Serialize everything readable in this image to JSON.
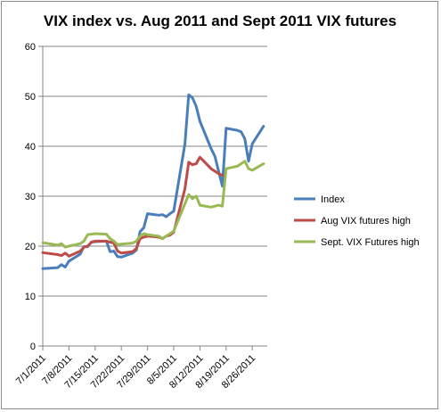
{
  "chart_data": {
    "type": "line",
    "title": "VIX index vs. Aug 2011 and Sept 2011 VIX futures",
    "xlabel": "",
    "ylabel": "",
    "ylim": [
      0,
      60
    ],
    "yticks": [
      0,
      10,
      20,
      30,
      40,
      50,
      60
    ],
    "xlim": [
      "2011-07-01",
      "2011-08-30"
    ],
    "xticks": [
      "7/1/2011",
      "7/8/2011",
      "7/15/2011",
      "7/22/2011",
      "7/29/2011",
      "8/5/2011",
      "8/12/2011",
      "8/19/2011",
      "8/26/2011"
    ],
    "grid": {
      "horizontal": true,
      "vertical": false
    },
    "legend_position": "right",
    "series": [
      {
        "name": "Index",
        "color": "#4a7ebb",
        "points": [
          [
            "2011-07-01",
            15.5
          ],
          [
            "2011-07-05",
            15.7
          ],
          [
            "2011-07-06",
            16.3
          ],
          [
            "2011-07-07",
            15.8
          ],
          [
            "2011-07-08",
            17.0
          ],
          [
            "2011-07-11",
            18.4
          ],
          [
            "2011-07-12",
            19.9
          ],
          [
            "2011-07-13",
            19.9
          ],
          [
            "2011-07-14",
            20.8
          ],
          [
            "2011-07-15",
            20.9
          ],
          [
            "2011-07-18",
            21.0
          ],
          [
            "2011-07-19",
            18.9
          ],
          [
            "2011-07-20",
            19.0
          ],
          [
            "2011-07-21",
            17.9
          ],
          [
            "2011-07-22",
            17.8
          ],
          [
            "2011-07-25",
            18.6
          ],
          [
            "2011-07-26",
            19.2
          ],
          [
            "2011-07-27",
            22.9
          ],
          [
            "2011-07-28",
            23.7
          ],
          [
            "2011-07-29",
            26.5
          ],
          [
            "2011-08-01",
            26.2
          ],
          [
            "2011-08-02",
            26.3
          ],
          [
            "2011-08-03",
            25.9
          ],
          [
            "2011-08-04",
            26.5
          ],
          [
            "2011-08-05",
            27.0
          ],
          [
            "2011-08-08",
            40.5
          ],
          [
            "2011-08-09",
            50.3
          ],
          [
            "2011-08-10",
            49.7
          ],
          [
            "2011-08-11",
            48.0
          ],
          [
            "2011-08-12",
            45.0
          ],
          [
            "2011-08-15",
            39.5
          ],
          [
            "2011-08-16",
            38.0
          ],
          [
            "2011-08-17",
            35.0
          ],
          [
            "2011-08-18",
            32.0
          ],
          [
            "2011-08-19",
            43.6
          ],
          [
            "2011-08-22",
            43.2
          ],
          [
            "2011-08-23",
            42.9
          ],
          [
            "2011-08-24",
            41.5
          ],
          [
            "2011-08-25",
            37.0
          ],
          [
            "2011-08-26",
            40.5
          ],
          [
            "2011-08-29",
            44.0
          ]
        ]
      },
      {
        "name": "Aug VIX futures high",
        "color": "#be4b48",
        "points": [
          [
            "2011-07-01",
            18.7
          ],
          [
            "2011-07-05",
            18.3
          ],
          [
            "2011-07-06",
            18.1
          ],
          [
            "2011-07-07",
            18.6
          ],
          [
            "2011-07-08",
            18.0
          ],
          [
            "2011-07-11",
            19.0
          ],
          [
            "2011-07-12",
            19.8
          ],
          [
            "2011-07-13",
            20.0
          ],
          [
            "2011-07-14",
            20.8
          ],
          [
            "2011-07-15",
            21.0
          ],
          [
            "2011-07-18",
            21.0
          ],
          [
            "2011-07-19",
            20.8
          ],
          [
            "2011-07-20",
            20.6
          ],
          [
            "2011-07-21",
            19.0
          ],
          [
            "2011-07-22",
            18.6
          ],
          [
            "2011-07-25",
            18.9
          ],
          [
            "2011-07-26",
            19.5
          ],
          [
            "2011-07-27",
            21.5
          ],
          [
            "2011-07-28",
            21.8
          ],
          [
            "2011-07-29",
            22.0
          ],
          [
            "2011-08-01",
            21.8
          ],
          [
            "2011-08-02",
            21.5
          ],
          [
            "2011-08-03",
            22.0
          ],
          [
            "2011-08-04",
            22.2
          ],
          [
            "2011-08-05",
            22.8
          ],
          [
            "2011-08-08",
            31.5
          ],
          [
            "2011-08-09",
            36.8
          ],
          [
            "2011-08-10",
            36.3
          ],
          [
            "2011-08-11",
            36.5
          ],
          [
            "2011-08-12",
            37.8
          ],
          [
            "2011-08-15",
            35.5
          ],
          [
            "2011-08-16",
            35.0
          ],
          [
            "2011-08-17",
            34.5
          ],
          [
            "2011-08-18",
            34.2
          ]
        ]
      },
      {
        "name": "Sept. VIX Futures high",
        "color": "#98b954",
        "points": [
          [
            "2011-07-01",
            20.7
          ],
          [
            "2011-07-05",
            20.2
          ],
          [
            "2011-07-06",
            20.5
          ],
          [
            "2011-07-07",
            19.8
          ],
          [
            "2011-07-08",
            20.0
          ],
          [
            "2011-07-11",
            20.5
          ],
          [
            "2011-07-12",
            21.0
          ],
          [
            "2011-07-13",
            22.3
          ],
          [
            "2011-07-14",
            22.4
          ],
          [
            "2011-07-15",
            22.5
          ],
          [
            "2011-07-18",
            22.4
          ],
          [
            "2011-07-19",
            21.5
          ],
          [
            "2011-07-20",
            21.0
          ],
          [
            "2011-07-21",
            20.3
          ],
          [
            "2011-07-22",
            20.4
          ],
          [
            "2011-07-25",
            20.6
          ],
          [
            "2011-07-26",
            21.0
          ],
          [
            "2011-07-27",
            22.0
          ],
          [
            "2011-07-28",
            22.5
          ],
          [
            "2011-07-29",
            22.3
          ],
          [
            "2011-08-01",
            22.0
          ],
          [
            "2011-08-02",
            21.5
          ],
          [
            "2011-08-03",
            22.0
          ],
          [
            "2011-08-04",
            22.5
          ],
          [
            "2011-08-05",
            23.0
          ],
          [
            "2011-08-08",
            28.5
          ],
          [
            "2011-08-09",
            30.3
          ],
          [
            "2011-08-10",
            29.5
          ],
          [
            "2011-08-11",
            30.0
          ],
          [
            "2011-08-12",
            28.2
          ],
          [
            "2011-08-15",
            27.8
          ],
          [
            "2011-08-16",
            28.0
          ],
          [
            "2011-08-17",
            28.2
          ],
          [
            "2011-08-18",
            28.0
          ],
          [
            "2011-08-19",
            35.5
          ],
          [
            "2011-08-22",
            36.0
          ],
          [
            "2011-08-23",
            36.5
          ],
          [
            "2011-08-24",
            37.0
          ],
          [
            "2011-08-25",
            35.5
          ],
          [
            "2011-08-26",
            35.2
          ],
          [
            "2011-08-29",
            36.5
          ]
        ]
      }
    ]
  }
}
